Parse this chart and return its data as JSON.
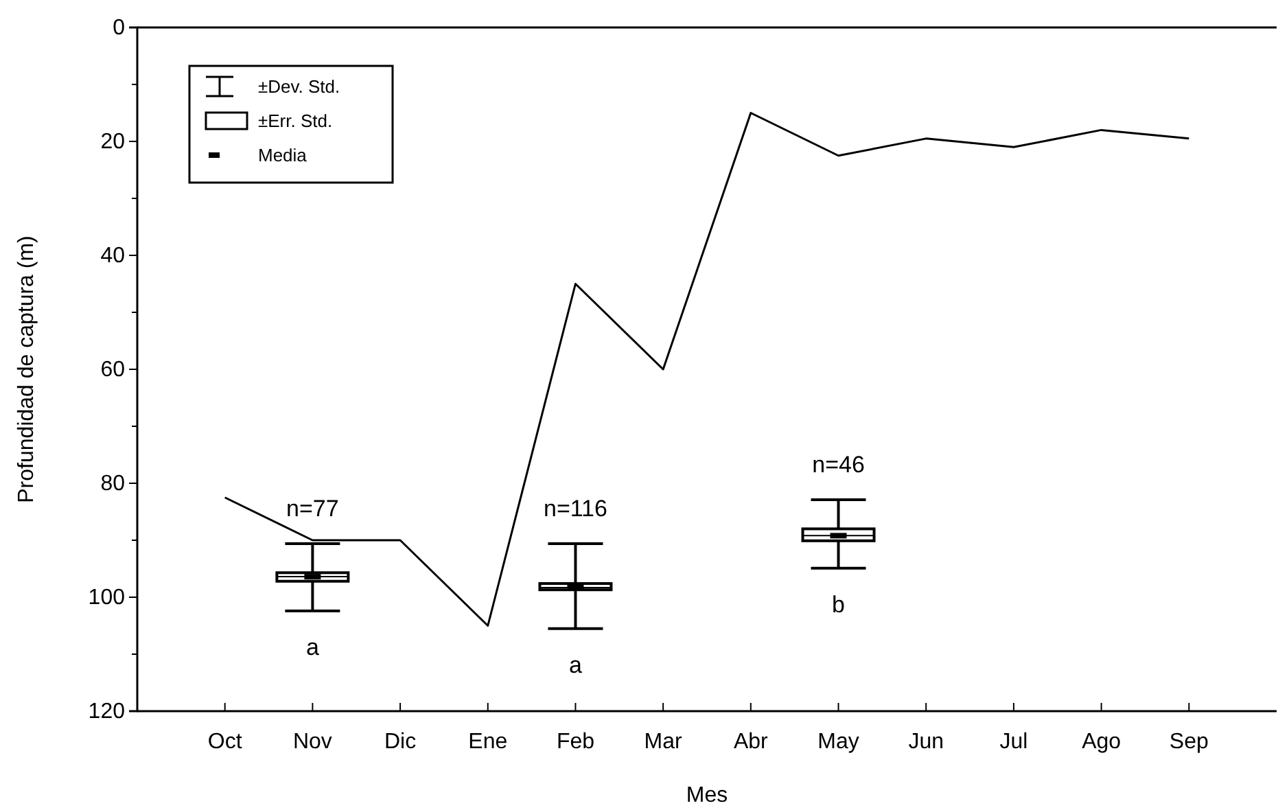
{
  "chart_data": {
    "type": "line",
    "xlabel": "Mes",
    "ylabel": "Profundidad de captura (m)",
    "categories": [
      "Oct",
      "Nov",
      "Dic",
      "Ene",
      "Feb",
      "Mar",
      "Abr",
      "May",
      "Jun",
      "Jul",
      "Ago",
      "Sep"
    ],
    "series": [
      {
        "type": "line",
        "color": "#000000",
        "values": [
          82.5,
          90,
          90,
          105,
          45,
          60,
          15,
          22.5,
          19.5,
          21,
          18,
          19.5
        ]
      },
      {
        "type": "box",
        "color": "#000000",
        "boxes": [
          null,
          {
            "low": 102.4,
            "q1": 97.2,
            "median": 96.4,
            "mean": 96.4,
            "q3": 95.7,
            "high": 90.6
          },
          null,
          null,
          {
            "low": 105.5,
            "q1": 98.7,
            "median": 98.3,
            "mean": 98.3,
            "q3": 97.6,
            "high": 90.6
          },
          null,
          null,
          {
            "low": 94.9,
            "q1": 90.1,
            "median": 89.2,
            "mean": 89.2,
            "q3": 88.0,
            "high": 82.9
          },
          null,
          null,
          null,
          null
        ]
      }
    ],
    "ylim": [
      120,
      0
    ],
    "yticks": [
      0,
      {
        "value": 10,
        "label": null
      },
      20,
      {
        "value": 30,
        "label": null
      },
      40,
      {
        "value": 50,
        "label": null
      },
      60,
      {
        "value": 70,
        "label": null
      },
      80,
      {
        "value": 90,
        "label": null
      },
      100,
      {
        "value": 110,
        "label": null
      },
      120
    ],
    "grid": false,
    "marker": "none",
    "line_style": "solid",
    "annotations": [
      "±Dev. Std.",
      "±Err. Std.",
      "Media",
      "n=77",
      "a",
      "n=116",
      "a",
      "n=46",
      "b"
    ]
  }
}
